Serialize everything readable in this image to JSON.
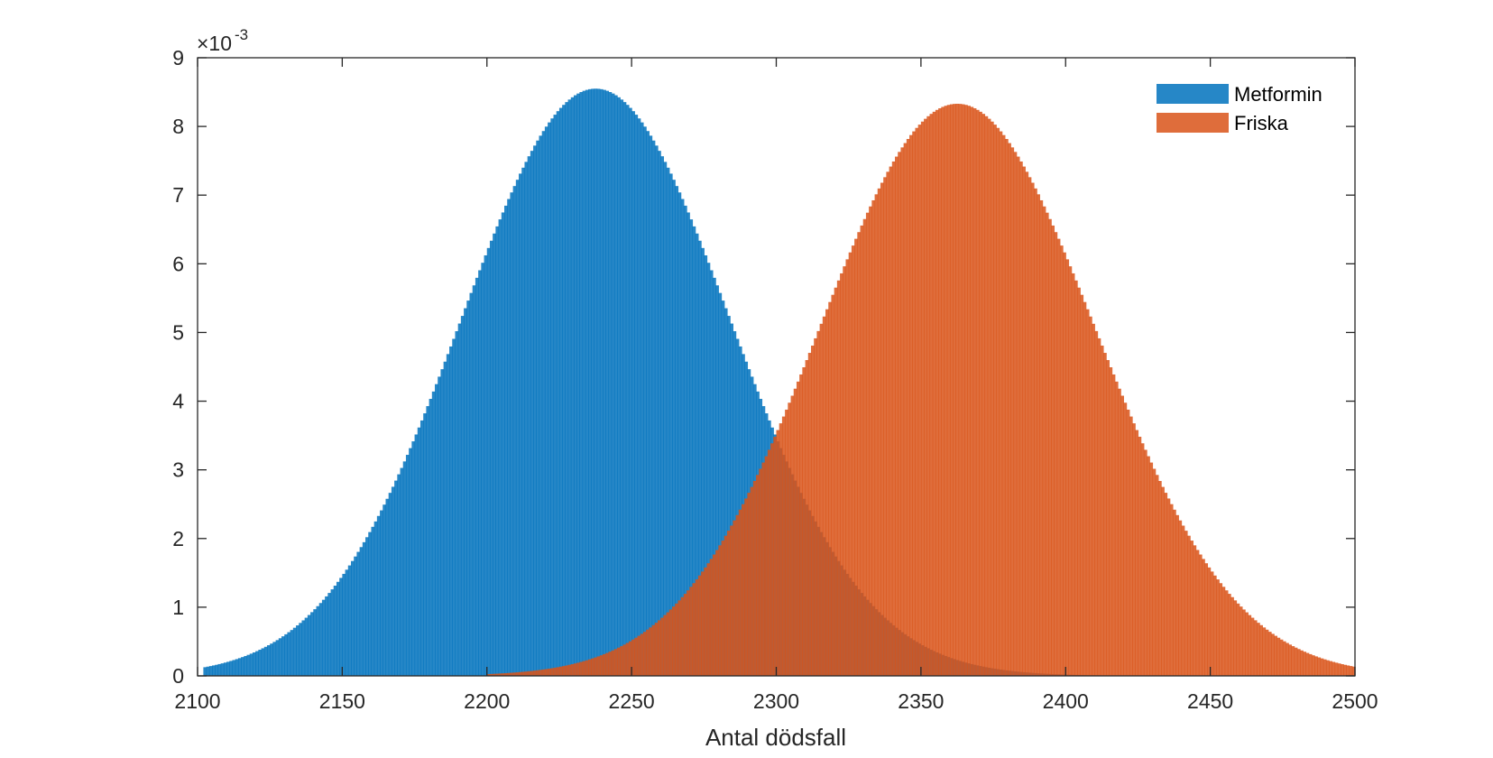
{
  "chart_data": {
    "type": "bar",
    "xlabel": "Antal dödsfall",
    "ylabel": "",
    "xlim": [
      2100,
      2500
    ],
    "ylim": [
      0,
      0.009
    ],
    "y_exponent_label": "×10",
    "y_exponent_power": "-3",
    "x_ticks": [
      2100,
      2150,
      2200,
      2250,
      2300,
      2350,
      2400,
      2450,
      2500
    ],
    "x_tick_labels": [
      "2100",
      "2150",
      "2200",
      "2250",
      "2300",
      "2350",
      "2400",
      "2450",
      "2500"
    ],
    "y_ticks": [
      0,
      0.001,
      0.002,
      0.003,
      0.004,
      0.005,
      0.006,
      0.007,
      0.008,
      0.009
    ],
    "y_tick_labels": [
      "0",
      "1",
      "2",
      "3",
      "4",
      "5",
      "6",
      "7",
      "8",
      "9"
    ],
    "grid": false,
    "legend_position": "top-right",
    "series": [
      {
        "name": "Metformin",
        "color": "#0072BD",
        "opacity": 0.85,
        "x_range": [
          2102,
          2500
        ],
        "distribution": "normal",
        "mean": 2237.5,
        "sd": 46.5,
        "peak": 0.00855
      },
      {
        "name": "Friska",
        "color": "#D95319",
        "opacity": 0.85,
        "x_range": [
          2200,
          2500
        ],
        "distribution": "normal",
        "mean": 2362.5,
        "sd": 47.7,
        "peak": 0.00833
      }
    ]
  }
}
